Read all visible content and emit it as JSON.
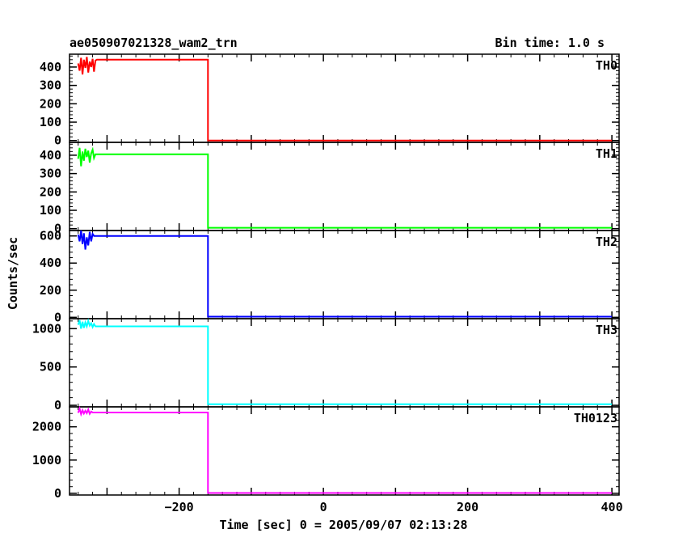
{
  "header": {
    "title": "ae050907021328_wam2_trn",
    "bin_time": "Bin time: 1.0 s"
  },
  "axes": {
    "xlabel": "Time [sec] 0 = 2005/09/07 02:13:28",
    "ylabel": "Counts/sec"
  },
  "chart_data": {
    "type": "line",
    "title": "ae050907021328_wam2_trn",
    "subtitle": "Bin time: 1.0 s",
    "xlabel": "Time [sec] 0 = 2005/09/07 02:13:28",
    "ylabel": "Counts/sec",
    "xlim": [
      -352,
      410
    ],
    "x_ticks": [
      -200,
      0,
      200,
      400
    ],
    "x_tick_labels": [
      "−200",
      "0",
      "200",
      "400"
    ],
    "grid": false,
    "panels": [
      {
        "name": "TH0",
        "color": "#ff0000",
        "ylim": [
          -10,
          470
        ],
        "y_ticks": [
          0,
          100,
          200,
          300,
          400
        ],
        "points": [
          [
            -340,
            420
          ],
          [
            -338,
            380
          ],
          [
            -336,
            450
          ],
          [
            -334,
            360
          ],
          [
            -332,
            440
          ],
          [
            -330,
            395
          ],
          [
            -328,
            455
          ],
          [
            -326,
            370
          ],
          [
            -324,
            430
          ],
          [
            -322,
            400
          ],
          [
            -320,
            445
          ],
          [
            -318,
            375
          ],
          [
            -316,
            435
          ],
          [
            -314,
            440
          ],
          [
            -160,
            440
          ],
          [
            -160,
            0
          ],
          [
            400,
            0
          ]
        ]
      },
      {
        "name": "TH1",
        "color": "#00ff00",
        "ylim": [
          -10,
          470
        ],
        "y_ticks": [
          0,
          100,
          200,
          300,
          400
        ],
        "points": [
          [
            -340,
            380
          ],
          [
            -338,
            440
          ],
          [
            -336,
            340
          ],
          [
            -334,
            420
          ],
          [
            -332,
            370
          ],
          [
            -330,
            435
          ],
          [
            -328,
            390
          ],
          [
            -326,
            425
          ],
          [
            -324,
            360
          ],
          [
            -322,
            410
          ],
          [
            -320,
            430
          ],
          [
            -318,
            385
          ],
          [
            -316,
            405
          ],
          [
            -314,
            405
          ],
          [
            -160,
            405
          ],
          [
            -160,
            5
          ],
          [
            400,
            5
          ]
        ]
      },
      {
        "name": "TH2",
        "color": "#0000ff",
        "ylim": [
          -10,
          640
        ],
        "y_ticks": [
          0,
          200,
          400,
          600
        ],
        "points": [
          [
            -340,
            610
          ],
          [
            -338,
            560
          ],
          [
            -336,
            640
          ],
          [
            -334,
            540
          ],
          [
            -332,
            620
          ],
          [
            -330,
            500
          ],
          [
            -328,
            590
          ],
          [
            -326,
            530
          ],
          [
            -324,
            630
          ],
          [
            -322,
            560
          ],
          [
            -320,
            615
          ],
          [
            -318,
            600
          ],
          [
            -316,
            600
          ],
          [
            -160,
            600
          ],
          [
            -160,
            5
          ],
          [
            400,
            5
          ]
        ]
      },
      {
        "name": "TH3",
        "color": "#00ffff",
        "ylim": [
          -20,
          1130
        ],
        "y_ticks": [
          0,
          500,
          1000
        ],
        "points": [
          [
            -340,
            1050
          ],
          [
            -338,
            1110
          ],
          [
            -336,
            1000
          ],
          [
            -334,
            1090
          ],
          [
            -332,
            1010
          ],
          [
            -330,
            1080
          ],
          [
            -328,
            1030
          ],
          [
            -326,
            1100
          ],
          [
            -324,
            1040
          ],
          [
            -322,
            1070
          ],
          [
            -320,
            1020
          ],
          [
            -318,
            1060
          ],
          [
            -316,
            1030
          ],
          [
            -314,
            1030
          ],
          [
            -160,
            1030
          ],
          [
            -160,
            15
          ],
          [
            400,
            15
          ]
        ]
      },
      {
        "name": "TH0123",
        "color": "#ff00ff",
        "ylim": [
          -50,
          2600
        ],
        "y_ticks": [
          0,
          1000,
          2000
        ],
        "points": [
          [
            -340,
            2420
          ],
          [
            -338,
            2550
          ],
          [
            -336,
            2380
          ],
          [
            -334,
            2500
          ],
          [
            -332,
            2400
          ],
          [
            -330,
            2480
          ],
          [
            -328,
            2410
          ],
          [
            -326,
            2520
          ],
          [
            -324,
            2390
          ],
          [
            -322,
            2460
          ],
          [
            -320,
            2430
          ],
          [
            -318,
            2430
          ],
          [
            -160,
            2430
          ],
          [
            -160,
            10
          ],
          [
            400,
            10
          ]
        ]
      }
    ]
  }
}
